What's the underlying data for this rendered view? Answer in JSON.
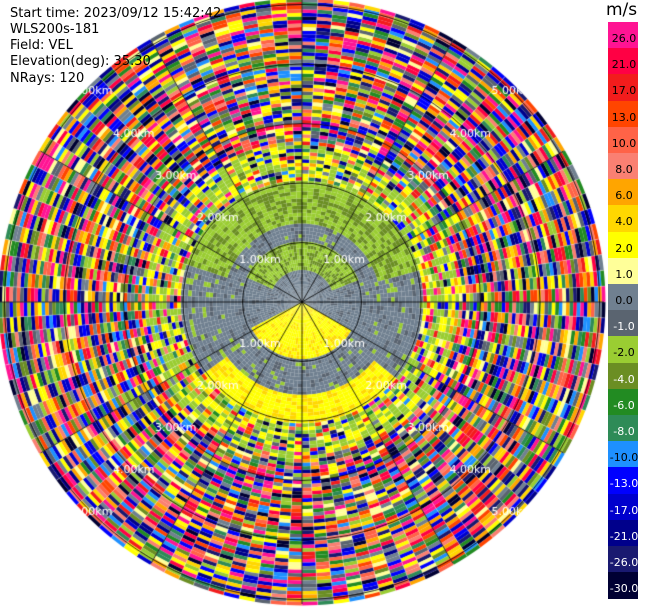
{
  "header": {
    "start_time": "Start time: 2023/09/12 15:42:42",
    "instrument": "WLS200s-181",
    "field": "Field: VEL",
    "elevation": "Elevation(deg): 35.30",
    "nrays": "NRays: 120"
  },
  "colorbar": {
    "unit": "m/s",
    "levels": [
      {
        "value": "26.0",
        "color": "#ff1493"
      },
      {
        "value": "21.0",
        "color": "#ff0044"
      },
      {
        "value": "17.0",
        "color": "#f21c1c"
      },
      {
        "value": "13.0",
        "color": "#ff4500"
      },
      {
        "value": "10.0",
        "color": "#ff6347"
      },
      {
        "value": "8.0",
        "color": "#fa8072"
      },
      {
        "value": "6.0",
        "color": "#ffa500"
      },
      {
        "value": "4.0",
        "color": "#ffd700"
      },
      {
        "value": "2.0",
        "color": "#ffff00"
      },
      {
        "value": "1.0",
        "color": "#ffff99"
      },
      {
        "value": "0.0",
        "color": "#708090"
      },
      {
        "value": "-1.0",
        "color": "#5a6470"
      },
      {
        "value": "-2.0",
        "color": "#9acd32"
      },
      {
        "value": "-4.0",
        "color": "#6b8e23"
      },
      {
        "value": "-6.0",
        "color": "#228b22"
      },
      {
        "value": "-8.0",
        "color": "#2e8b57"
      },
      {
        "value": "-10.0",
        "color": "#1e90ff"
      },
      {
        "value": "-13.0",
        "color": "#0000ff"
      },
      {
        "value": "-17.0",
        "color": "#0000cd"
      },
      {
        "value": "-21.0",
        "color": "#00008b"
      },
      {
        "value": "-26.0",
        "color": "#191970"
      },
      {
        "value": "-30.0",
        "color": "#000033"
      }
    ]
  },
  "chart_data": {
    "type": "heatmap",
    "title": "",
    "field": "VEL",
    "unit": "m/s",
    "nrays": 120,
    "range_rings_km": [
      1.0,
      2.0,
      3.0,
      4.0,
      5.0
    ],
    "range_ring_labels": [
      "1.00km",
      "2.00km",
      "3.00km",
      "4.00km",
      "5.00km"
    ],
    "spokes_deg": [
      0,
      30,
      60,
      90,
      120,
      150,
      180,
      210,
      240,
      270,
      300,
      330
    ],
    "vmin": -30.0,
    "vmax": 26.0,
    "description_regions": [
      {
        "range_km": [
          0.0,
          1.0
        ],
        "values": "mostly -1 to 0 (grey), with -2 (light green) to the north and +2 (yellow) to the south"
      },
      {
        "range_km": [
          1.0,
          2.0
        ],
        "values": "mostly 0 (grey) with -2 (light green) ring to the north and +2 (yellow) ring to the south"
      },
      {
        "range_km": [
          2.0,
          5.2
        ],
        "values": "noisy, all levels"
      }
    ]
  }
}
